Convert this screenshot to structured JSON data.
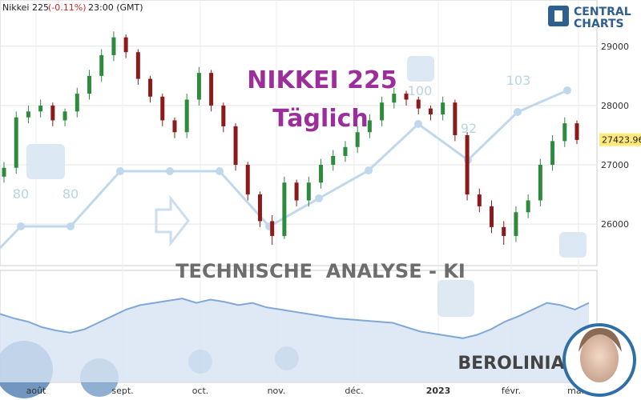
{
  "chart_data": {
    "type": "candlestick",
    "title": "Nikkei 225",
    "change": "(-0.11%)",
    "time": "23:00 (GMT)",
    "brand": [
      "CENTRAL",
      "CHARTS"
    ],
    "watermarks": {
      "name": "NIKKEI 225",
      "period": "Täglich",
      "analysis": "TECHNISCHE  ANALYSE - KI",
      "author": "BEROLINIA"
    },
    "score_labels": [
      "80",
      "80",
      "100",
      "92",
      "103"
    ],
    "ylim": [
      25300,
      29780
    ],
    "yticks": [
      26000,
      27000,
      28000,
      29000
    ],
    "grid": true,
    "last_price": 27423.96,
    "up_color": "#2e8b3e",
    "down_color": "#8b1a1a",
    "xlabels": [
      "août",
      "sept.",
      "oct.",
      "nov.",
      "déc.",
      "2023",
      "févr.",
      "mars"
    ],
    "open": [
      26800,
      26950,
      27800,
      27900,
      28000,
      27750,
      27900,
      28200,
      28500,
      28850,
      29150,
      28900,
      28450,
      28150,
      27750,
      27550,
      28100,
      28550,
      28000,
      27650,
      27000,
      26500,
      26050,
      25800,
      26700,
      26400,
      26700,
      27000,
      27150,
      27300,
      27550,
      27750,
      28050,
      28200,
      28100,
      27950,
      27850,
      28050,
      27500,
      26500,
      26300,
      25950,
      25800,
      26200,
      26400,
      27000,
      27400,
      27700
    ],
    "high": [
      27050,
      27900,
      28000,
      28100,
      28050,
      27950,
      28300,
      28600,
      28950,
      29250,
      29200,
      28950,
      28500,
      28200,
      27800,
      28200,
      28650,
      28600,
      28050,
      27700,
      27050,
      26550,
      26150,
      26800,
      26750,
      26800,
      27100,
      27250,
      27400,
      27650,
      27850,
      28150,
      28300,
      28250,
      28150,
      28000,
      28150,
      28100,
      27550,
      26600,
      26400,
      26050,
      26300,
      26500,
      27100,
      27500,
      27800,
      27750
    ],
    "low": [
      26700,
      26850,
      27700,
      27800,
      27650,
      27650,
      27800,
      28100,
      28400,
      28750,
      28800,
      28350,
      28050,
      27650,
      27450,
      27450,
      28000,
      27900,
      27550,
      26900,
      26400,
      25950,
      25650,
      25750,
      26300,
      26300,
      26600,
      26900,
      27050,
      27200,
      27450,
      27650,
      27950,
      28000,
      27850,
      27750,
      27750,
      27400,
      26400,
      26200,
      25850,
      25650,
      25700,
      26100,
      26300,
      26900,
      27300,
      27350
    ],
    "close": [
      26950,
      27800,
      27900,
      28000,
      27750,
      27900,
      28200,
      28500,
      28850,
      29150,
      28900,
      28450,
      28150,
      27750,
      27550,
      28100,
      28550,
      28000,
      27650,
      27000,
      26500,
      26050,
      25800,
      26700,
      26400,
      26700,
      27000,
      27150,
      27300,
      27550,
      27750,
      28050,
      28200,
      28100,
      27950,
      27850,
      28050,
      27500,
      26500,
      26300,
      25950,
      25800,
      26200,
      26400,
      27000,
      27400,
      27700,
      27420
    ],
    "indicator": {
      "color": "#7fa8d8",
      "ylim": [
        0,
        100
      ],
      "values": [
        62,
        58,
        55,
        50,
        47,
        45,
        48,
        54,
        60,
        66,
        70,
        72,
        74,
        76,
        72,
        75,
        73,
        70,
        72,
        68,
        66,
        64,
        62,
        60,
        58,
        57,
        56,
        55,
        54,
        50,
        46,
        44,
        42,
        40,
        43,
        48,
        55,
        60,
        66,
        72,
        70,
        66,
        72
      ]
    }
  }
}
